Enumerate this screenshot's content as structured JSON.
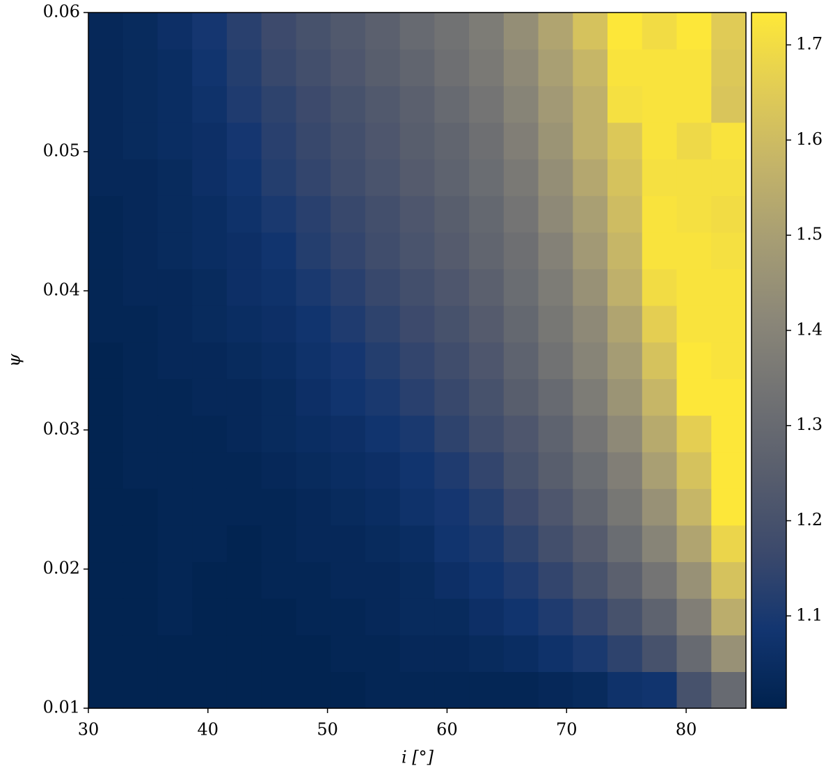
{
  "chart_data": {
    "type": "heatmap",
    "xlabel": "i [°]",
    "ylabel": "ψ",
    "xlim": [
      30,
      85
    ],
    "ylim": [
      0.01,
      0.06
    ],
    "xticks": [
      30,
      40,
      50,
      60,
      70,
      80
    ],
    "yticks": [
      0.01,
      0.02,
      0.03,
      0.04,
      0.05,
      0.06
    ],
    "zlim": [
      1.003,
      1.734
    ],
    "colorbar_ticks": [
      1.1,
      1.2,
      1.3,
      1.4,
      1.5,
      1.6,
      1.7
    ],
    "colormap": [
      "#00224e",
      "#123570",
      "#3b496c",
      "#575d6d",
      "#707173",
      "#8a8678",
      "#a59c74",
      "#c3b369",
      "#e1cc55",
      "#fee838"
    ],
    "z": [
      [
        1.01,
        1.01,
        1.01,
        1.01,
        1.01,
        1.01,
        1.01,
        1.01,
        1.02,
        1.02,
        1.02,
        1.02,
        1.02,
        1.03,
        1.04,
        1.07,
        1.08,
        1.2,
        1.3
      ],
      [
        1.01,
        1.01,
        1.01,
        1.01,
        1.01,
        1.01,
        1.01,
        1.02,
        1.02,
        1.03,
        1.03,
        1.04,
        1.05,
        1.07,
        1.1,
        1.14,
        1.2,
        1.3,
        1.45
      ],
      [
        1.01,
        1.01,
        1.02,
        1.01,
        1.01,
        1.01,
        1.02,
        1.02,
        1.03,
        1.04,
        1.04,
        1.06,
        1.08,
        1.11,
        1.15,
        1.2,
        1.27,
        1.38,
        1.55
      ],
      [
        1.01,
        1.01,
        1.02,
        1.01,
        1.01,
        1.02,
        1.02,
        1.03,
        1.03,
        1.04,
        1.06,
        1.08,
        1.11,
        1.15,
        1.2,
        1.26,
        1.34,
        1.45,
        1.62
      ],
      [
        1.01,
        1.01,
        1.02,
        1.02,
        1.01,
        1.02,
        1.03,
        1.03,
        1.04,
        1.05,
        1.08,
        1.1,
        1.14,
        1.19,
        1.24,
        1.31,
        1.4,
        1.52,
        1.68
      ],
      [
        1.01,
        1.01,
        1.02,
        1.02,
        1.02,
        1.02,
        1.03,
        1.04,
        1.05,
        1.07,
        1.09,
        1.12,
        1.17,
        1.22,
        1.28,
        1.35,
        1.45,
        1.58,
        1.73
      ],
      [
        1.01,
        1.02,
        1.02,
        1.02,
        1.02,
        1.03,
        1.04,
        1.05,
        1.06,
        1.08,
        1.11,
        1.15,
        1.2,
        1.25,
        1.31,
        1.38,
        1.5,
        1.62,
        1.73
      ],
      [
        1.01,
        1.02,
        1.02,
        1.02,
        1.03,
        1.04,
        1.05,
        1.06,
        1.08,
        1.1,
        1.14,
        1.18,
        1.22,
        1.27,
        1.34,
        1.42,
        1.54,
        1.66,
        1.73
      ],
      [
        1.01,
        1.02,
        1.02,
        1.03,
        1.03,
        1.04,
        1.06,
        1.08,
        1.1,
        1.13,
        1.16,
        1.2,
        1.25,
        1.3,
        1.37,
        1.46,
        1.58,
        1.73,
        1.73
      ],
      [
        1.01,
        1.02,
        1.03,
        1.03,
        1.04,
        1.05,
        1.07,
        1.09,
        1.12,
        1.15,
        1.18,
        1.22,
        1.27,
        1.33,
        1.4,
        1.49,
        1.62,
        1.73,
        1.72
      ],
      [
        1.02,
        1.02,
        1.03,
        1.04,
        1.05,
        1.06,
        1.08,
        1.11,
        1.14,
        1.17,
        1.2,
        1.24,
        1.29,
        1.35,
        1.42,
        1.52,
        1.66,
        1.72,
        1.72
      ],
      [
        1.02,
        1.03,
        1.03,
        1.04,
        1.06,
        1.07,
        1.1,
        1.13,
        1.16,
        1.19,
        1.22,
        1.26,
        1.31,
        1.37,
        1.45,
        1.56,
        1.7,
        1.72,
        1.72
      ],
      [
        1.02,
        1.03,
        1.04,
        1.05,
        1.06,
        1.08,
        1.12,
        1.15,
        1.18,
        1.21,
        1.24,
        1.28,
        1.32,
        1.39,
        1.48,
        1.58,
        1.72,
        1.72,
        1.71
      ],
      [
        1.02,
        1.03,
        1.04,
        1.05,
        1.07,
        1.1,
        1.13,
        1.16,
        1.19,
        1.22,
        1.25,
        1.29,
        1.34,
        1.42,
        1.5,
        1.6,
        1.72,
        1.71,
        1.7
      ],
      [
        1.03,
        1.03,
        1.04,
        1.06,
        1.08,
        1.12,
        1.15,
        1.18,
        1.21,
        1.24,
        1.27,
        1.31,
        1.36,
        1.44,
        1.53,
        1.62,
        1.71,
        1.71,
        1.71
      ],
      [
        1.03,
        1.04,
        1.05,
        1.06,
        1.09,
        1.13,
        1.16,
        1.19,
        1.22,
        1.25,
        1.28,
        1.32,
        1.38,
        1.46,
        1.56,
        1.64,
        1.72,
        1.69,
        1.72
      ],
      [
        1.03,
        1.04,
        1.05,
        1.07,
        1.11,
        1.14,
        1.17,
        1.2,
        1.23,
        1.26,
        1.3,
        1.34,
        1.4,
        1.48,
        1.56,
        1.71,
        1.72,
        1.72,
        1.63
      ],
      [
        1.03,
        1.04,
        1.05,
        1.08,
        1.12,
        1.16,
        1.19,
        1.22,
        1.25,
        1.28,
        1.32,
        1.36,
        1.42,
        1.5,
        1.58,
        1.72,
        1.72,
        1.72,
        1.64
      ],
      [
        1.03,
        1.04,
        1.06,
        1.09,
        1.13,
        1.17,
        1.2,
        1.23,
        1.26,
        1.3,
        1.33,
        1.37,
        1.44,
        1.52,
        1.62,
        1.73,
        1.7,
        1.73,
        1.65
      ]
    ]
  }
}
